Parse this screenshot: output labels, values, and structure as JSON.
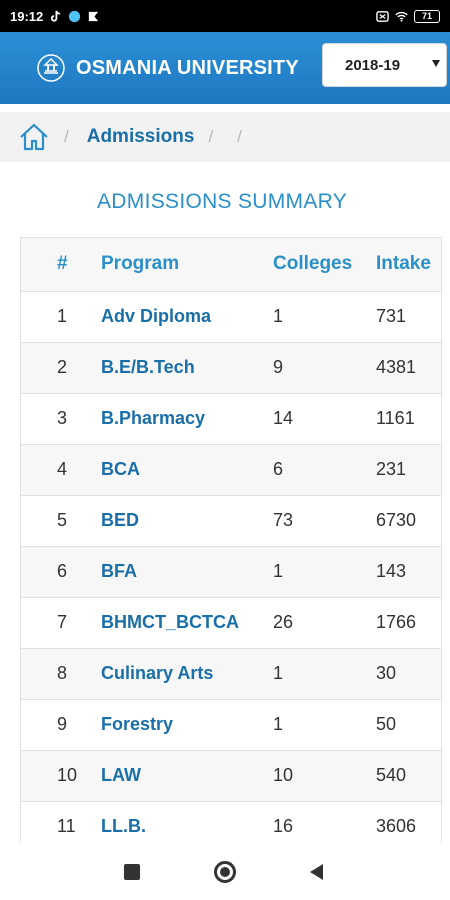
{
  "status_bar": {
    "time": "19:12",
    "battery": "71"
  },
  "header": {
    "title": "OSMANIA UNIVERSITY",
    "year_selected": "2018-19"
  },
  "breadcrumb": {
    "items": [
      "Admissions"
    ],
    "separator": "/"
  },
  "section_title": "ADMISSIONS SUMMARY",
  "table": {
    "columns": [
      "#",
      "Program",
      "Colleges",
      "Intake"
    ],
    "rows": [
      {
        "num": "1",
        "program": "Adv Diploma",
        "colleges": "1",
        "intake": "731"
      },
      {
        "num": "2",
        "program": "B.E/B.Tech",
        "colleges": "9",
        "intake": "4381"
      },
      {
        "num": "3",
        "program": "B.Pharmacy",
        "colleges": "14",
        "intake": "1161"
      },
      {
        "num": "4",
        "program": "BCA",
        "colleges": "6",
        "intake": "231"
      },
      {
        "num": "5",
        "program": "BED",
        "colleges": "73",
        "intake": "6730"
      },
      {
        "num": "6",
        "program": "BFA",
        "colleges": "1",
        "intake": "143"
      },
      {
        "num": "7",
        "program": "BHMCT_BCTCA",
        "colleges": "26",
        "intake": "1766"
      },
      {
        "num": "8",
        "program": "Culinary Arts",
        "colleges": "1",
        "intake": "30"
      },
      {
        "num": "9",
        "program": "Forestry",
        "colleges": "1",
        "intake": "50"
      },
      {
        "num": "10",
        "program": "LAW",
        "colleges": "10",
        "intake": "540"
      },
      {
        "num": "11",
        "program": "LL.B.",
        "colleges": "16",
        "intake": "3606"
      }
    ]
  },
  "colors": {
    "header_blue": "#1f78c1",
    "accent_blue": "#2b8fc9",
    "link_blue": "#1a6fa8"
  },
  "icons": {
    "home": "home-icon",
    "logo": "university-logo-icon",
    "dropdown": "chevron-down-icon",
    "nav_recent": "recent-apps-icon",
    "nav_home": "nav-home-icon",
    "nav_back": "back-icon"
  }
}
